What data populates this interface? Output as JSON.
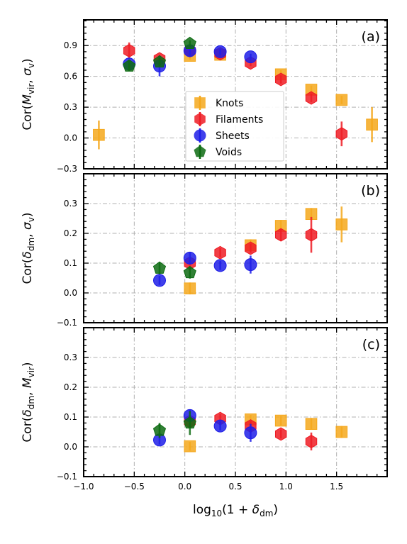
{
  "chart_data": [
    {
      "type": "scatter",
      "panel_label": "(a)",
      "ylabel_main": "Cor(",
      "ylabel_sym1": "M",
      "ylabel_sub1": "vir",
      "ylabel_mid": ", ",
      "ylabel_sym2": "σ",
      "ylabel_sub2": "v",
      "ylabel_end": ")",
      "ylim": [
        -0.3,
        1.15
      ],
      "yticks": [
        "-0.3",
        "0.0",
        "0.3",
        "0.6",
        "0.9"
      ],
      "grid": true,
      "legend": {
        "placement": "center",
        "entries": [
          "Knots",
          "Filaments",
          "Sheets",
          "Voids"
        ]
      },
      "series": [
        {
          "name": "Knots",
          "x": [
            -0.85,
            0.05,
            0.35,
            0.95,
            1.25,
            1.55,
            1.85
          ],
          "y": [
            0.03,
            0.8,
            0.81,
            0.62,
            0.47,
            0.37,
            0.13
          ],
          "err": [
            0.14,
            0.04,
            0.03,
            0.04,
            0.04,
            0.04,
            0.17
          ]
        },
        {
          "name": "Filaments",
          "x": [
            -0.55,
            -0.25,
            0.05,
            0.35,
            0.65,
            0.95,
            1.25,
            1.55
          ],
          "y": [
            0.85,
            0.77,
            0.85,
            0.82,
            0.73,
            0.57,
            0.39,
            0.04
          ],
          "err": [
            0.08,
            0.04,
            0.03,
            0.03,
            0.03,
            0.04,
            0.04,
            0.12
          ]
        },
        {
          "name": "Sheets",
          "x": [
            -0.55,
            -0.25,
            0.05,
            0.35,
            0.65
          ],
          "y": [
            0.72,
            0.7,
            0.85,
            0.84,
            0.79
          ],
          "err": [
            0.04,
            0.1,
            0.05,
            0.03,
            0.03
          ]
        },
        {
          "name": "Voids",
          "x": [
            -0.55,
            -0.25,
            0.05
          ],
          "y": [
            0.7,
            0.74,
            0.92
          ],
          "err": [
            0.05,
            0.04,
            0.03
          ]
        }
      ]
    },
    {
      "type": "scatter",
      "panel_label": "(b)",
      "ylabel_main": "Cor(",
      "ylabel_sym1": "δ",
      "ylabel_sub1": "dm",
      "ylabel_mid": ", ",
      "ylabel_sym2": "σ",
      "ylabel_sub2": "v",
      "ylabel_end": ")",
      "ylim": [
        -0.1,
        0.4
      ],
      "yticks": [
        "-0.1",
        "0.0",
        "0.1",
        "0.2",
        "0.3"
      ],
      "grid": true,
      "series": [
        {
          "name": "Knots",
          "x": [
            0.05,
            0.65,
            0.95,
            1.25,
            1.55
          ],
          "y": [
            0.015,
            0.16,
            0.225,
            0.265,
            0.23
          ],
          "err": [
            0.02,
            0.02,
            0.02,
            0.02,
            0.06
          ]
        },
        {
          "name": "Filaments",
          "x": [
            0.05,
            0.35,
            0.65,
            0.95,
            1.25
          ],
          "y": [
            0.1,
            0.135,
            0.15,
            0.195,
            0.195
          ],
          "err": [
            0.015,
            0.015,
            0.015,
            0.02,
            0.06
          ]
        },
        {
          "name": "Sheets",
          "x": [
            -0.25,
            0.05,
            0.35,
            0.65
          ],
          "y": [
            0.042,
            0.117,
            0.092,
            0.095
          ],
          "err": [
            0.015,
            0.02,
            0.015,
            0.03
          ]
        },
        {
          "name": "Voids",
          "x": [
            -0.25,
            0.05
          ],
          "y": [
            0.083,
            0.068
          ],
          "err": [
            0.02,
            0.02
          ]
        }
      ]
    },
    {
      "type": "scatter",
      "panel_label": "(c)",
      "ylabel_main": "Cor(",
      "ylabel_sym1": "δ",
      "ylabel_sub1": "dm",
      "ylabel_mid": ", ",
      "ylabel_sym2": "M",
      "ylabel_sub2": "vir",
      "ylabel_end": ")",
      "ylim": [
        -0.1,
        0.4
      ],
      "yticks": [
        "-0.1",
        "0.0",
        "0.1",
        "0.2",
        "0.3"
      ],
      "xlim": [
        -1.0,
        2.0
      ],
      "xticks": [
        "-1.0",
        "-0.5",
        "0.0",
        "0.5",
        "1.0",
        "1.5"
      ],
      "xlabel_main": "log",
      "xlabel_sub": "10",
      "xlabel_open": "(1 + ",
      "xlabel_sym": "δ",
      "xlabel_sym_sub": "dm",
      "xlabel_close": ")",
      "grid": true,
      "series": [
        {
          "name": "Knots",
          "x": [
            0.05,
            0.65,
            0.95,
            1.25,
            1.55
          ],
          "y": [
            0.002,
            0.092,
            0.088,
            0.077,
            0.05
          ],
          "err": [
            0.015,
            0.015,
            0.015,
            0.02,
            0.02
          ]
        },
        {
          "name": "Filaments",
          "x": [
            0.05,
            0.35,
            0.65,
            0.95,
            1.25
          ],
          "y": [
            0.085,
            0.095,
            0.07,
            0.043,
            0.018
          ],
          "err": [
            0.02,
            0.015,
            0.015,
            0.015,
            0.03
          ]
        },
        {
          "name": "Sheets",
          "x": [
            -0.25,
            0.05,
            0.35,
            0.65
          ],
          "y": [
            0.023,
            0.105,
            0.07,
            0.047
          ],
          "err": [
            0.015,
            0.02,
            0.015,
            0.03
          ]
        },
        {
          "name": "Voids",
          "x": [
            -0.25,
            0.05
          ],
          "y": [
            0.055,
            0.08
          ],
          "err": [
            0.025,
            0.04
          ]
        }
      ]
    }
  ],
  "colors": {
    "Knots": "#f5a81c",
    "Filaments": "#ee1c24",
    "Sheets": "#1f1fe8",
    "Voids": "#0d6b12"
  },
  "markers": {
    "Knots": "square",
    "Filaments": "hexagon",
    "Sheets": "circle",
    "Voids": "pentagon"
  }
}
